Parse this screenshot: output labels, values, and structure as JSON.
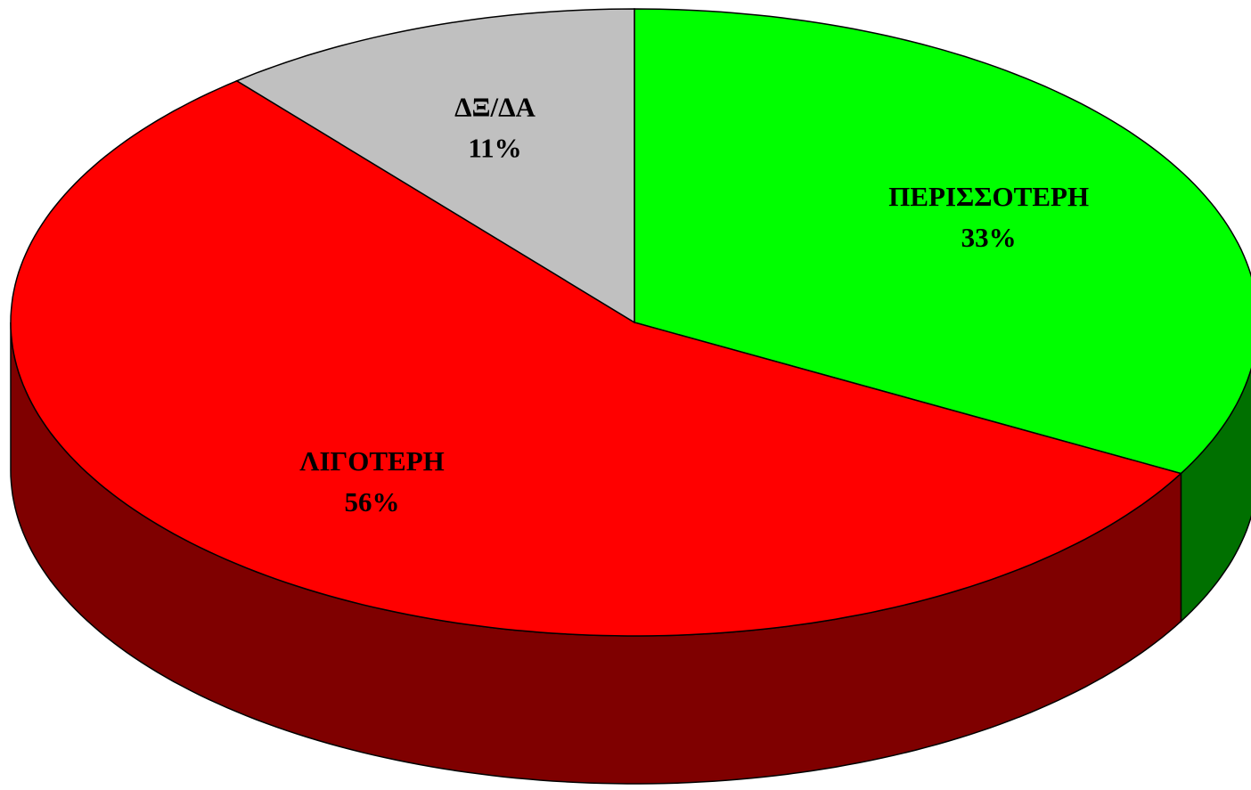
{
  "chart_data": {
    "type": "pie",
    "categories": [
      "ΠΕΡΙΣΣΟΤΕΡΗ",
      "ΛΙΓΟΤΕΡΗ",
      "ΔΞ/ΔΑ"
    ],
    "values": [
      33,
      56,
      11
    ],
    "value_labels": [
      "33%",
      "56%",
      "11%"
    ],
    "colors": [
      "#00ff00",
      "#ff0000",
      "#c0c0c0"
    ],
    "side_colors": [
      "#007000",
      "#7f0000",
      "#909090"
    ]
  }
}
